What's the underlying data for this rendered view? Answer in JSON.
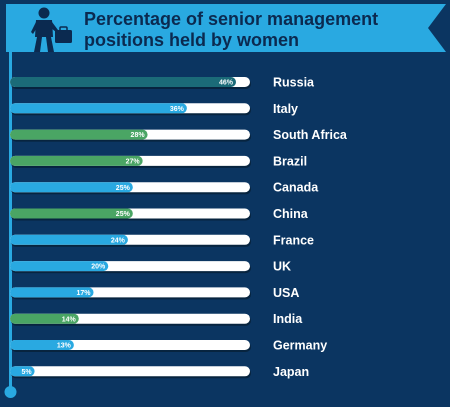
{
  "title_line1": "Percentage of senior management",
  "title_line2": "positions held by women",
  "colors": {
    "background": "#0b3561",
    "banner": "#29a9e1",
    "title_text": "#0b2a50",
    "track": "#ffffff",
    "track_shadow": "#07243f",
    "timeline": "#29a9e1",
    "fill_highlight": "#1b6b78",
    "fill_blue": "#29a9e1",
    "fill_green": "#4aa564",
    "label_text": "#ffffff",
    "icon": "#0b2a50"
  },
  "icon": "businessperson-with-briefcase-icon",
  "chart_data": {
    "type": "bar",
    "orientation": "horizontal",
    "title": "Percentage of senior management positions held by women",
    "categories": [
      "Russia",
      "Italy",
      "South Africa",
      "Brazil",
      "Canada",
      "China",
      "France",
      "UK",
      "USA",
      "India",
      "Germany",
      "Japan"
    ],
    "values": [
      46,
      36,
      28,
      27,
      25,
      25,
      24,
      20,
      17,
      14,
      13,
      5
    ],
    "value_labels": [
      "46%",
      "36%",
      "28%",
      "27%",
      "25%",
      "25%",
      "24%",
      "20%",
      "17%",
      "14%",
      "13%",
      "5%"
    ],
    "bar_colors": [
      "#1b6b78",
      "#29a9e1",
      "#4aa564",
      "#4aa564",
      "#29a9e1",
      "#4aa564",
      "#29a9e1",
      "#29a9e1",
      "#29a9e1",
      "#4aa564",
      "#29a9e1",
      "#29a9e1"
    ],
    "xlim": [
      0,
      50
    ],
    "grid": false,
    "legend": "none"
  }
}
